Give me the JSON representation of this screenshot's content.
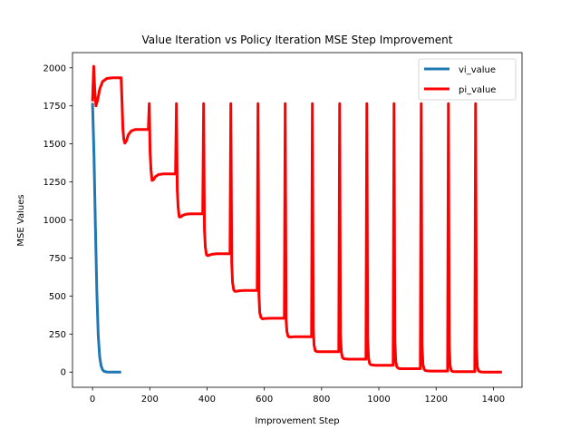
{
  "chart_data": {
    "type": "line",
    "title": "Value Iteration vs Policy Iteration MSE Step Improvement",
    "xlabel": "Improvement Step",
    "ylabel": "MSE Values",
    "xlim": [
      -70,
      1500
    ],
    "ylim": [
      -100,
      2100
    ],
    "xticks": [
      0,
      200,
      400,
      600,
      800,
      1000,
      1200,
      1400
    ],
    "yticks": [
      0,
      250,
      500,
      750,
      1000,
      1250,
      1500,
      1750,
      2000
    ],
    "grid": false,
    "legend_position": "upper right",
    "series": [
      {
        "name": "vi_value",
        "color": "#1f77b4",
        "x": [
          0,
          5,
          10,
          15,
          20,
          25,
          30,
          35,
          40,
          50,
          60,
          70,
          80,
          90,
          100
        ],
        "y": [
          1770,
          1430,
          950,
          520,
          240,
          100,
          40,
          15,
          5,
          1,
          0,
          0,
          0,
          0,
          0
        ]
      },
      {
        "name": "pi_value",
        "color": "#ff0000",
        "x": [
          0,
          4,
          8,
          12,
          18,
          25,
          35,
          50,
          70,
          100,
          103,
          106,
          109,
          113,
          118,
          125,
          135,
          150,
          170,
          195,
          198,
          201,
          204,
          208,
          213,
          220,
          230,
          245,
          265,
          290,
          293,
          296,
          299,
          303,
          308,
          315,
          325,
          340,
          360,
          385,
          388,
          391,
          394,
          398,
          403,
          410,
          420,
          435,
          455,
          480,
          483,
          486,
          489,
          493,
          498,
          505,
          515,
          530,
          550,
          575,
          578,
          581,
          584,
          588,
          593,
          600,
          610,
          625,
          645,
          670,
          673,
          676,
          679,
          683,
          688,
          695,
          705,
          720,
          740,
          765,
          768,
          771,
          774,
          778,
          783,
          790,
          800,
          815,
          835,
          860,
          863,
          866,
          869,
          873,
          878,
          885,
          895,
          910,
          930,
          955,
          958,
          961,
          964,
          968,
          973,
          980,
          990,
          1005,
          1025,
          1050,
          1053,
          1056,
          1059,
          1063,
          1068,
          1075,
          1085,
          1100,
          1120,
          1145,
          1148,
          1151,
          1154,
          1158,
          1163,
          1170,
          1180,
          1195,
          1215,
          1240,
          1243,
          1246,
          1249,
          1253,
          1258,
          1265,
          1275,
          1290,
          1310,
          1335,
          1338,
          1341,
          1344,
          1348,
          1353,
          1360,
          1370,
          1385,
          1405,
          1430
        ],
        "y": [
          1780,
          2010,
          1850,
          1750,
          1790,
          1860,
          1910,
          1930,
          1935,
          1935,
          1765,
          1600,
          1530,
          1505,
          1520,
          1560,
          1585,
          1595,
          1595,
          1595,
          1765,
          1450,
          1330,
          1260,
          1265,
          1285,
          1298,
          1302,
          1302,
          1302,
          1765,
          1200,
          1080,
          1020,
          1020,
          1030,
          1037,
          1040,
          1040,
          1040,
          1765,
          940,
          820,
          770,
          765,
          770,
          775,
          778,
          778,
          778,
          1765,
          720,
          590,
          540,
          530,
          532,
          535,
          537,
          537,
          537,
          1765,
          510,
          390,
          360,
          350,
          352,
          353,
          354,
          354,
          354,
          1765,
          345,
          265,
          235,
          230,
          231,
          232,
          232,
          232,
          232,
          1765,
          280,
          175,
          140,
          135,
          134,
          134,
          134,
          134,
          134,
          1765,
          250,
          130,
          95,
          88,
          86,
          85,
          85,
          85,
          85,
          1765,
          220,
          90,
          55,
          48,
          46,
          45,
          45,
          45,
          45,
          1765,
          200,
          70,
          35,
          25,
          22,
          22,
          22,
          22,
          22,
          1765,
          180,
          50,
          18,
          10,
          8,
          7,
          7,
          7,
          7,
          1765,
          170,
          40,
          10,
          4,
          3,
          3,
          3,
          3,
          3,
          1765,
          160,
          35,
          8,
          2,
          1,
          0,
          0,
          0,
          0
        ]
      }
    ]
  }
}
